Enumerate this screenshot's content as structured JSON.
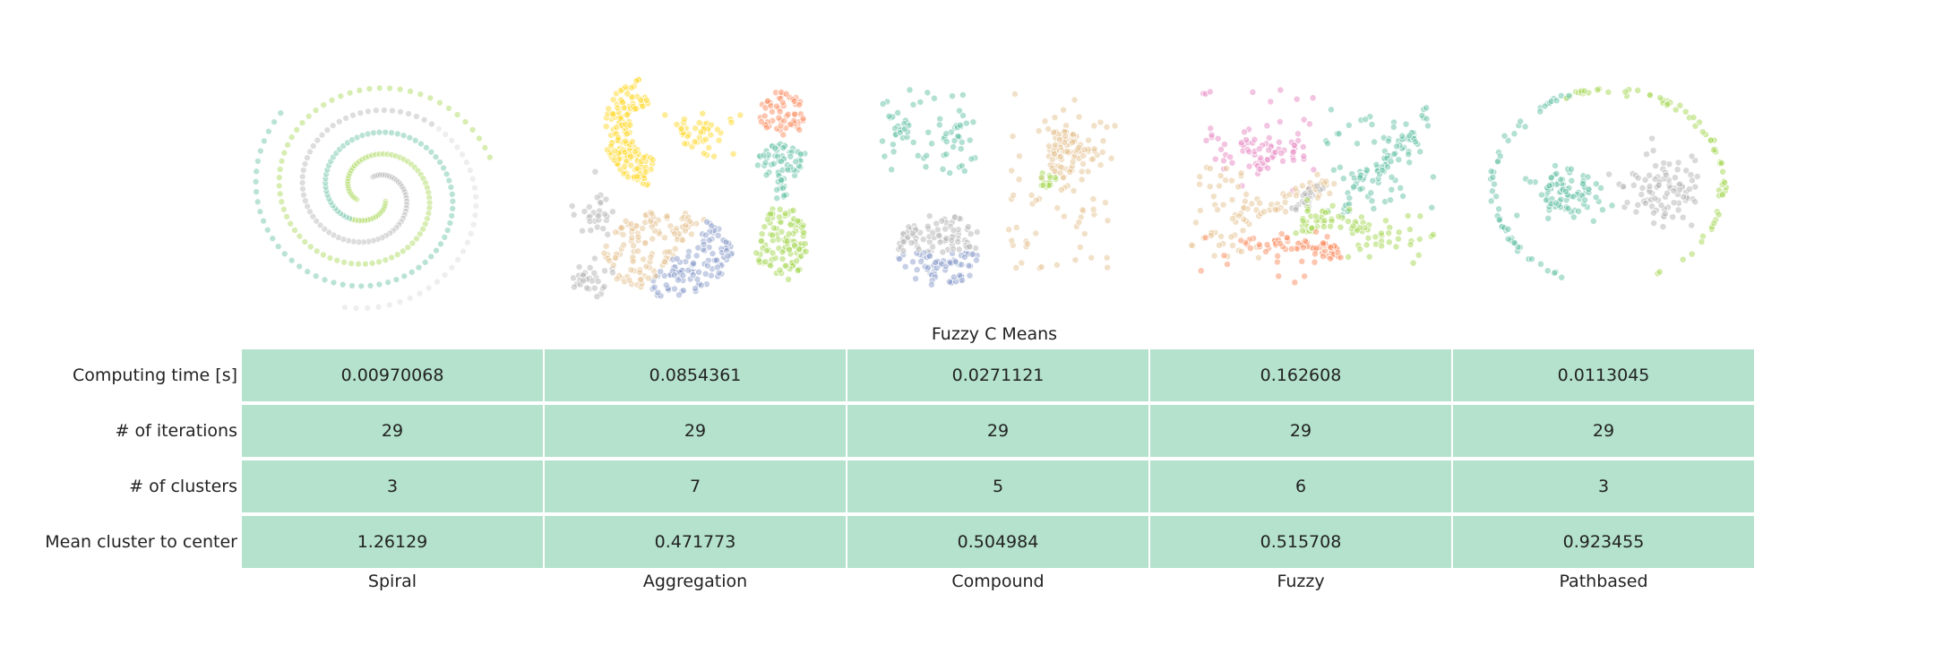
{
  "chart_data": {
    "type": "table",
    "title": "Fuzzy C Means",
    "columns": [
      "Spiral",
      "Aggregation",
      "Compound",
      "Fuzzy",
      "Pathbased"
    ],
    "rows": [
      {
        "label": "Computing time [s]",
        "values": [
          "0.00970068",
          "0.0854361",
          "0.0271121",
          "0.162608",
          "0.0113045"
        ]
      },
      {
        "label": "# of iterations",
        "values": [
          "29",
          "29",
          "29",
          "29",
          "29"
        ]
      },
      {
        "label": "# of clusters",
        "values": [
          "3",
          "7",
          "5",
          "6",
          "3"
        ]
      },
      {
        "label": "Mean cluster to center",
        "values": [
          "1.26129",
          "0.471773",
          "0.504984",
          "0.515708",
          "0.923455"
        ]
      }
    ],
    "cell_color": "#b4e2cc",
    "cluster_palette": [
      "#66c2a5",
      "#fc8d62",
      "#8da0cb",
      "#e78ac3",
      "#a6d854",
      "#ffd92f",
      "#e5c494",
      "#b3b3b3"
    ],
    "scatter_plots": [
      {
        "dataset": "Spiral",
        "clusters": 3
      },
      {
        "dataset": "Aggregation",
        "clusters": 7
      },
      {
        "dataset": "Compound",
        "clusters": 5
      },
      {
        "dataset": "Fuzzy",
        "clusters": 6
      },
      {
        "dataset": "Pathbased",
        "clusters": 3
      }
    ]
  }
}
